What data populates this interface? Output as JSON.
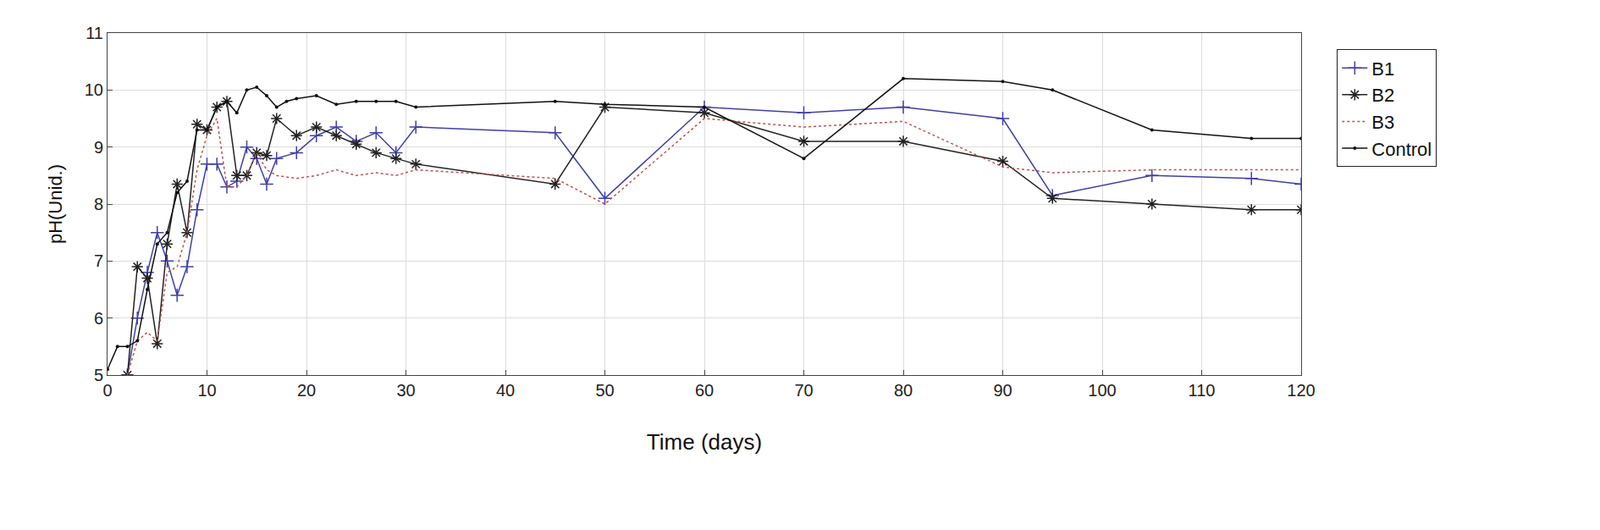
{
  "chart_data": {
    "type": "line",
    "x_label": "Time (days)",
    "y_label": "pH(Unid.)",
    "xlim": [
      0,
      120
    ],
    "xticks": [
      0,
      10,
      20,
      30,
      40,
      50,
      60,
      70,
      80,
      90,
      100,
      110,
      120
    ],
    "ylim": [
      5,
      11
    ],
    "yticks": [
      5,
      6,
      7,
      8,
      9,
      10,
      11
    ],
    "grid": true,
    "legend": "right",
    "series": [
      {
        "name": "B1",
        "color": "#3f3fa8",
        "marker": "cross",
        "line_style": "solid",
        "x": [
          2,
          3,
          4,
          5,
          6,
          7,
          8,
          9,
          10,
          11,
          12,
          13,
          14,
          15,
          16,
          17,
          19,
          21,
          23,
          25,
          27,
          29,
          31,
          45,
          50,
          60,
          70,
          80,
          90,
          95,
          105,
          115,
          120
        ],
        "values": [
          5.0,
          6.0,
          6.8,
          7.5,
          7.0,
          6.4,
          6.9,
          7.9,
          8.7,
          8.7,
          8.3,
          8.4,
          9.0,
          8.8,
          8.35,
          8.8,
          8.9,
          9.2,
          9.35,
          9.1,
          9.25,
          8.9,
          9.35,
          9.25,
          8.1,
          9.7,
          9.6,
          9.7,
          9.5,
          8.15,
          8.5,
          8.45,
          8.35
        ]
      },
      {
        "name": "B2",
        "color": "#222222",
        "marker": "asterisk",
        "line_style": "solid",
        "x": [
          2,
          3,
          4,
          5,
          6,
          7,
          8,
          9,
          10,
          11,
          12,
          13,
          14,
          15,
          16,
          17,
          19,
          21,
          23,
          25,
          27,
          29,
          31,
          45,
          50,
          60,
          70,
          80,
          90,
          95,
          105,
          115,
          120
        ],
        "values": [
          5.0,
          6.9,
          6.7,
          5.55,
          7.3,
          8.35,
          7.5,
          9.4,
          9.3,
          9.7,
          9.8,
          8.5,
          8.5,
          8.9,
          8.85,
          9.5,
          9.2,
          9.35,
          9.2,
          9.05,
          8.9,
          8.8,
          8.7,
          8.35,
          9.7,
          9.6,
          9.1,
          9.1,
          8.75,
          8.1,
          8.0,
          7.9,
          7.9
        ]
      },
      {
        "name": "B3",
        "color": "#c0504d",
        "marker": "none",
        "line_style": "dot",
        "x": [
          2,
          3,
          4,
          5,
          6,
          7,
          8,
          9,
          10,
          11,
          12,
          13,
          14,
          15,
          16,
          17,
          19,
          21,
          23,
          25,
          27,
          29,
          31,
          45,
          50,
          60,
          70,
          80,
          90,
          95,
          105,
          115,
          120
        ],
        "values": [
          5.0,
          5.6,
          5.75,
          5.6,
          6.8,
          6.9,
          7.5,
          8.6,
          9.2,
          9.5,
          8.3,
          8.3,
          8.5,
          8.9,
          8.6,
          8.5,
          8.45,
          8.5,
          8.6,
          8.5,
          8.55,
          8.5,
          8.6,
          8.45,
          8.0,
          9.5,
          9.35,
          9.45,
          8.65,
          8.55,
          8.6,
          8.6,
          8.6
        ]
      },
      {
        "name": "Control",
        "color": "#111111",
        "marker": "point",
        "line_style": "solid",
        "x": [
          0,
          1,
          2,
          3,
          4,
          5,
          6,
          7,
          8,
          9,
          10,
          11,
          12,
          13,
          14,
          15,
          16,
          17,
          18,
          19,
          21,
          23,
          25,
          27,
          29,
          31,
          45,
          50,
          60,
          70,
          80,
          90,
          95,
          105,
          115,
          120
        ],
        "values": [
          5.1,
          5.5,
          5.5,
          5.6,
          6.5,
          7.3,
          7.5,
          8.2,
          8.4,
          9.3,
          9.3,
          9.7,
          9.8,
          9.6,
          10.0,
          10.05,
          9.9,
          9.7,
          9.8,
          9.85,
          9.9,
          9.75,
          9.8,
          9.8,
          9.8,
          9.7,
          9.8,
          9.75,
          9.7,
          8.8,
          10.2,
          10.15,
          10.0,
          9.3,
          9.15,
          9.15
        ]
      }
    ]
  }
}
